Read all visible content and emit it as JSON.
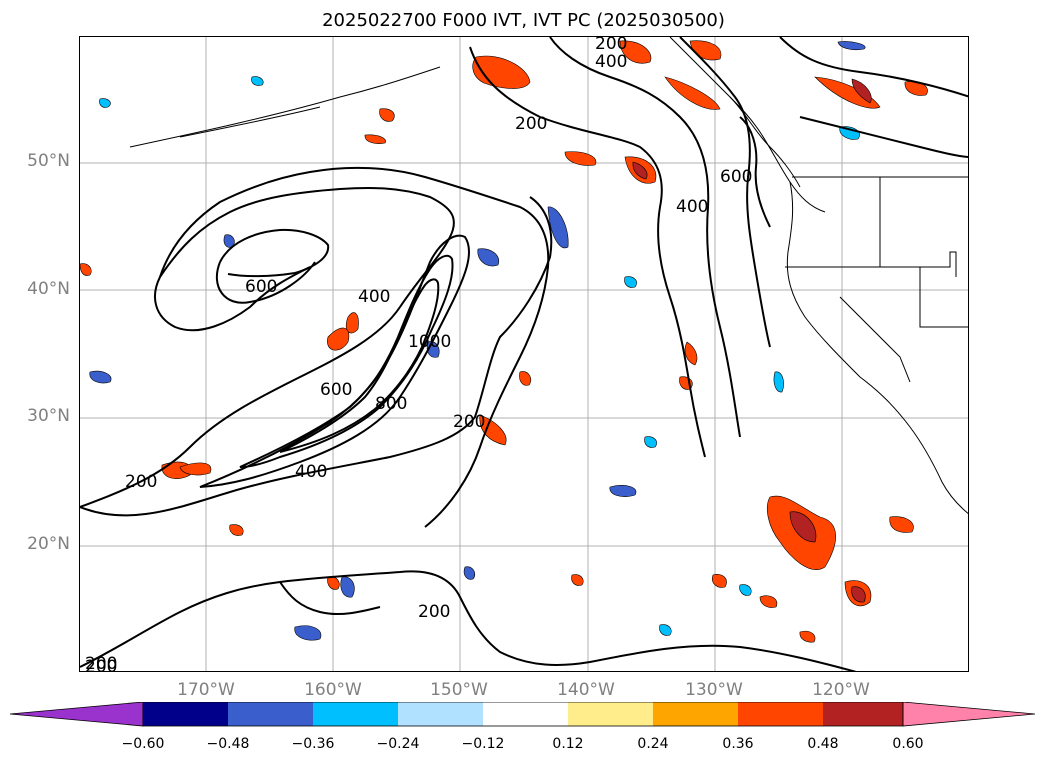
{
  "title": "2025022700 F000 IVT, IVT PC (2025030500)",
  "map": {
    "lat_labels": [
      "50°N",
      "40°N",
      "30°N",
      "20°N"
    ],
    "lon_labels": [
      "170°W",
      "160°W",
      "150°W",
      "140°W",
      "130°W",
      "120°W"
    ],
    "contour_labels": [
      "200",
      "200",
      "400",
      "200",
      "600",
      "400",
      "600",
      "400",
      "1000",
      "800",
      "600",
      "400",
      "200",
      "200",
      "200",
      "200"
    ]
  },
  "colorbar": {
    "ticks": [
      "−0.60",
      "−0.48",
      "−0.36",
      "−0.24",
      "−0.12",
      "0.12",
      "0.24",
      "0.36",
      "0.48",
      "0.60"
    ],
    "colors": [
      "#9a32cd",
      "#00008b",
      "#3a5fcd",
      "#00bfff",
      "#b0e2ff",
      "#ffffff",
      "#ffec8b",
      "#ffa500",
      "#ff4500",
      "#b22222",
      "#ff82ab"
    ]
  }
}
